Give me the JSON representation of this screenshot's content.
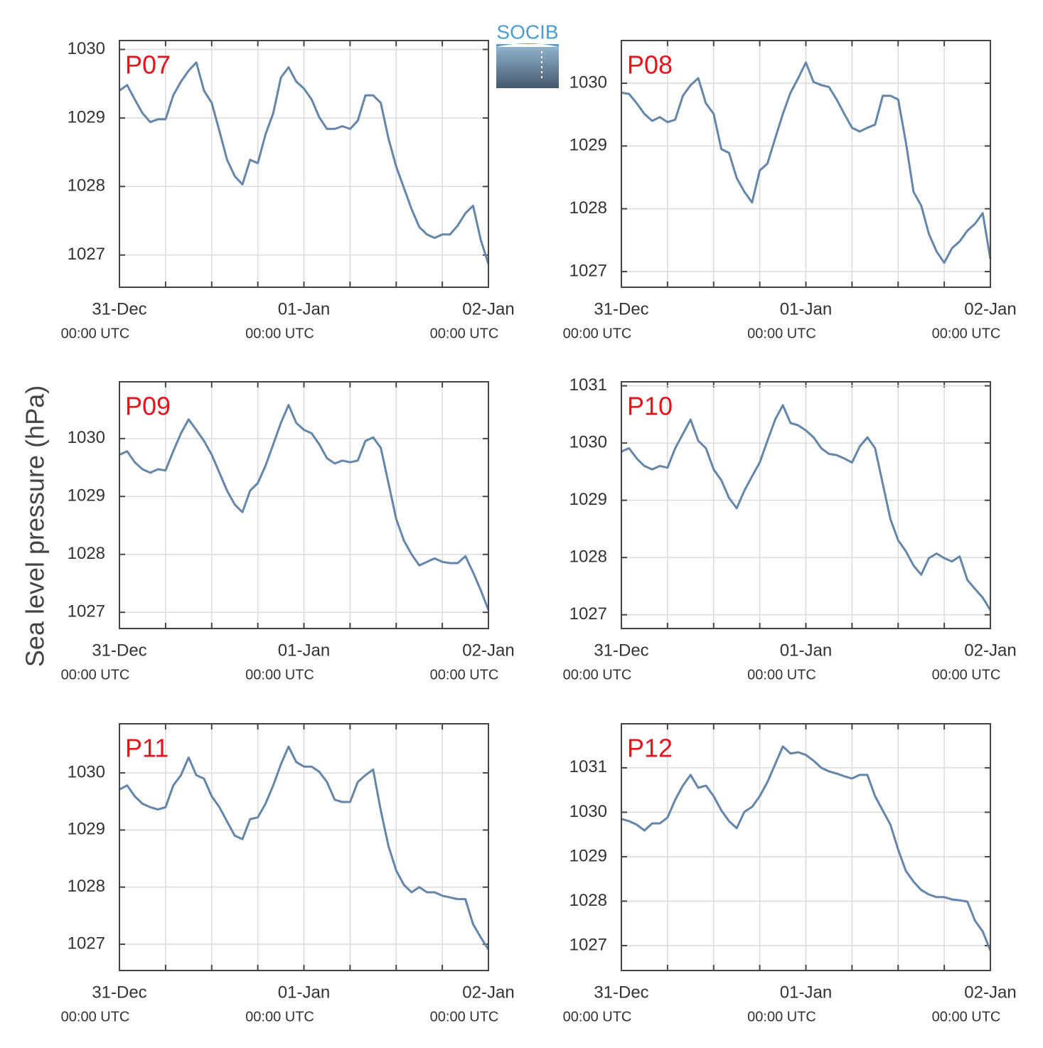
{
  "ylabel": "Sea level pressure (hPa)",
  "logo": "SOCIB",
  "chart_data": [
    {
      "type": "line",
      "title": "P07",
      "color": "#6486aa",
      "x": [
        0,
        1,
        2,
        3,
        4,
        5,
        6,
        7,
        8,
        9,
        10,
        11,
        12,
        13,
        14,
        15,
        16,
        17,
        18,
        19,
        20,
        21,
        22,
        23,
        24,
        25,
        26,
        27,
        28,
        29,
        30,
        31,
        32,
        33,
        34,
        35,
        36,
        37,
        38,
        39,
        40,
        41,
        42,
        43,
        44,
        45,
        46,
        47,
        48
      ],
      "values": [
        1029.4,
        1029.48,
        1029.27,
        1029.07,
        1028.94,
        1028.98,
        1028.98,
        1029.33,
        1029.53,
        1029.69,
        1029.81,
        1029.4,
        1029.22,
        1028.81,
        1028.39,
        1028.15,
        1028.03,
        1028.39,
        1028.34,
        1028.76,
        1029.07,
        1029.59,
        1029.74,
        1029.53,
        1029.43,
        1029.27,
        1029.01,
        1028.84,
        1028.84,
        1028.88,
        1028.84,
        1028.96,
        1029.33,
        1029.33,
        1029.22,
        1028.7,
        1028.29,
        1027.98,
        1027.67,
        1027.41,
        1027.3,
        1027.25,
        1027.3,
        1027.3,
        1027.43,
        1027.61,
        1027.72,
        1027.22,
        1026.87
      ],
      "xlim": [
        0,
        48
      ],
      "xticks": [
        {
          "value": 0,
          "label": "31-Dec"
        },
        {
          "value": 24,
          "label": "01-Jan"
        },
        {
          "value": 48,
          "label": "02-Jan"
        }
      ],
      "xtick_sublabels": [
        "00:00 UTC",
        "00:00 UTC",
        "00:00 UTC"
      ],
      "xminor_ticks": [
        6,
        12,
        18,
        30,
        36,
        42
      ],
      "ylim": [
        1026.53,
        1030.13
      ],
      "yticks": [
        1027,
        1028,
        1029,
        1030
      ],
      "grid": true
    },
    {
      "type": "line",
      "title": "P08",
      "color": "#6486aa",
      "x": [
        0,
        1,
        2,
        3,
        4,
        5,
        6,
        7,
        8,
        9,
        10,
        11,
        12,
        13,
        14,
        15,
        16,
        17,
        18,
        19,
        20,
        21,
        22,
        23,
        24,
        25,
        26,
        27,
        28,
        29,
        30,
        31,
        32,
        33,
        34,
        35,
        36,
        37,
        38,
        39,
        40,
        41,
        42,
        43,
        44,
        45,
        46,
        47,
        48
      ],
      "values": [
        1029.85,
        1029.83,
        1029.68,
        1029.51,
        1029.4,
        1029.46,
        1029.38,
        1029.42,
        1029.8,
        1029.97,
        1030.08,
        1029.68,
        1029.51,
        1028.95,
        1028.89,
        1028.49,
        1028.27,
        1028.1,
        1028.61,
        1028.72,
        1029.12,
        1029.51,
        1029.85,
        1030.08,
        1030.33,
        1030.02,
        1029.97,
        1029.94,
        1029.74,
        1029.51,
        1029.29,
        1029.23,
        1029.29,
        1029.34,
        1029.8,
        1029.8,
        1029.74,
        1029.06,
        1028.27,
        1028.05,
        1027.6,
        1027.32,
        1027.14,
        1027.37,
        1027.48,
        1027.65,
        1027.76,
        1027.93,
        1027.2
      ],
      "xlim": [
        0,
        48
      ],
      "xticks": [
        {
          "value": 0,
          "label": "31-Dec"
        },
        {
          "value": 24,
          "label": "01-Jan"
        },
        {
          "value": 48,
          "label": "02-Jan"
        }
      ],
      "xtick_sublabels": [
        "00:00 UTC",
        "00:00 UTC",
        "00:00 UTC"
      ],
      "xminor_ticks": [
        6,
        12,
        18,
        30,
        36,
        42
      ],
      "ylim": [
        1026.75,
        1030.68
      ],
      "yticks": [
        1027,
        1028,
        1029,
        1030
      ],
      "grid": true
    },
    {
      "type": "line",
      "title": "P09",
      "color": "#6486aa",
      "x": [
        0,
        1,
        2,
        3,
        4,
        5,
        6,
        7,
        8,
        9,
        10,
        11,
        12,
        13,
        14,
        15,
        16,
        17,
        18,
        19,
        20,
        21,
        22,
        23,
        24,
        25,
        26,
        27,
        28,
        29,
        30,
        31,
        32,
        33,
        34,
        35,
        36,
        37,
        38,
        39,
        40,
        41,
        42,
        43,
        44,
        45,
        46,
        47,
        48
      ],
      "values": [
        1029.72,
        1029.78,
        1029.59,
        1029.47,
        1029.41,
        1029.47,
        1029.45,
        1029.78,
        1030.09,
        1030.33,
        1030.15,
        1029.96,
        1029.72,
        1029.41,
        1029.1,
        1028.86,
        1028.73,
        1029.1,
        1029.23,
        1029.53,
        1029.9,
        1030.27,
        1030.58,
        1030.27,
        1030.15,
        1030.09,
        1029.9,
        1029.66,
        1029.57,
        1029.62,
        1029.59,
        1029.62,
        1029.96,
        1030.02,
        1029.84,
        1029.23,
        1028.61,
        1028.24,
        1028.0,
        1027.81,
        1027.87,
        1027.93,
        1027.87,
        1027.85,
        1027.85,
        1027.97,
        1027.69,
        1027.38,
        1027.04
      ],
      "xlim": [
        0,
        48
      ],
      "xticks": [
        {
          "value": 0,
          "label": "31-Dec"
        },
        {
          "value": 24,
          "label": "01-Jan"
        },
        {
          "value": 48,
          "label": "02-Jan"
        }
      ],
      "xtick_sublabels": [
        "00:00 UTC",
        "00:00 UTC",
        "00:00 UTC"
      ],
      "xminor_ticks": [
        6,
        12,
        18,
        30,
        36,
        42
      ],
      "ylim": [
        1026.72,
        1030.98
      ],
      "yticks": [
        1027,
        1028,
        1029,
        1030
      ],
      "grid": true
    },
    {
      "type": "line",
      "title": "P10",
      "color": "#6486aa",
      "x": [
        0,
        1,
        2,
        3,
        4,
        5,
        6,
        7,
        8,
        9,
        10,
        11,
        12,
        13,
        14,
        15,
        16,
        17,
        18,
        19,
        20,
        21,
        22,
        23,
        24,
        25,
        26,
        27,
        28,
        29,
        30,
        31,
        32,
        33,
        34,
        35,
        36,
        37,
        38,
        39,
        40,
        41,
        42,
        43,
        44,
        45,
        46,
        47,
        48
      ],
      "values": [
        1029.85,
        1029.91,
        1029.73,
        1029.6,
        1029.54,
        1029.6,
        1029.57,
        1029.91,
        1030.16,
        1030.41,
        1030.04,
        1029.91,
        1029.54,
        1029.35,
        1029.04,
        1028.86,
        1029.17,
        1029.42,
        1029.66,
        1030.04,
        1030.41,
        1030.66,
        1030.35,
        1030.31,
        1030.22,
        1030.1,
        1029.91,
        1029.81,
        1029.79,
        1029.73,
        1029.66,
        1029.94,
        1030.1,
        1029.91,
        1029.29,
        1028.67,
        1028.3,
        1028.11,
        1027.86,
        1027.7,
        1027.99,
        1028.07,
        1027.99,
        1027.93,
        1028.02,
        1027.61,
        1027.45,
        1027.3,
        1027.08
      ],
      "xlim": [
        0,
        48
      ],
      "xticks": [
        {
          "value": 0,
          "label": "31-Dec"
        },
        {
          "value": 24,
          "label": "01-Jan"
        },
        {
          "value": 48,
          "label": "02-Jan"
        }
      ],
      "xtick_sublabels": [
        "00:00 UTC",
        "00:00 UTC",
        "00:00 UTC"
      ],
      "xminor_ticks": [
        6,
        12,
        18,
        30,
        36,
        42
      ],
      "ylim": [
        1026.76,
        1031.07
      ],
      "yticks": [
        1027,
        1028,
        1029,
        1030,
        1031
      ],
      "grid": true
    },
    {
      "type": "line",
      "title": "P11",
      "color": "#6486aa",
      "x": [
        0,
        1,
        2,
        3,
        4,
        5,
        6,
        7,
        8,
        9,
        10,
        11,
        12,
        13,
        14,
        15,
        16,
        17,
        18,
        19,
        20,
        21,
        22,
        23,
        24,
        25,
        26,
        27,
        28,
        29,
        30,
        31,
        32,
        33,
        34,
        35,
        36,
        37,
        38,
        39,
        40,
        41,
        42,
        43,
        44,
        45,
        46,
        47,
        48
      ],
      "values": [
        1029.71,
        1029.78,
        1029.59,
        1029.46,
        1029.4,
        1029.36,
        1029.4,
        1029.78,
        1029.96,
        1030.27,
        1029.96,
        1029.9,
        1029.59,
        1029.4,
        1029.15,
        1028.9,
        1028.84,
        1029.19,
        1029.22,
        1029.46,
        1029.78,
        1030.15,
        1030.46,
        1030.19,
        1030.11,
        1030.11,
        1030.02,
        1029.84,
        1029.53,
        1029.49,
        1029.49,
        1029.84,
        1029.96,
        1030.06,
        1029.34,
        1028.72,
        1028.29,
        1028.04,
        1027.91,
        1028.0,
        1027.91,
        1027.91,
        1027.85,
        1027.82,
        1027.79,
        1027.79,
        1027.35,
        1027.12,
        1026.91
      ],
      "xlim": [
        0,
        48
      ],
      "xticks": [
        {
          "value": 0,
          "label": "31-Dec"
        },
        {
          "value": 24,
          "label": "01-Jan"
        },
        {
          "value": 48,
          "label": "02-Jan"
        }
      ],
      "xtick_sublabels": [
        "00:00 UTC",
        "00:00 UTC",
        "00:00 UTC"
      ],
      "xminor_ticks": [
        6,
        12,
        18,
        30,
        36,
        42
      ],
      "ylim": [
        1026.54,
        1030.86
      ],
      "yticks": [
        1027,
        1028,
        1029,
        1030
      ],
      "grid": true
    },
    {
      "type": "line",
      "title": "P12",
      "color": "#6486aa",
      "x": [
        0,
        1,
        2,
        3,
        4,
        5,
        6,
        7,
        8,
        9,
        10,
        11,
        12,
        13,
        14,
        15,
        16,
        17,
        18,
        19,
        20,
        21,
        22,
        23,
        24,
        25,
        26,
        27,
        28,
        29,
        30,
        31,
        32,
        33,
        34,
        35,
        36,
        37,
        38,
        39,
        40,
        41,
        42,
        43,
        44,
        45,
        46,
        47,
        48
      ],
      "values": [
        1029.85,
        1029.8,
        1029.72,
        1029.59,
        1029.75,
        1029.75,
        1029.88,
        1030.28,
        1030.6,
        1030.84,
        1030.55,
        1030.6,
        1030.36,
        1030.04,
        1029.8,
        1029.64,
        1030.01,
        1030.12,
        1030.36,
        1030.68,
        1031.08,
        1031.48,
        1031.32,
        1031.35,
        1031.29,
        1031.16,
        1031.0,
        1030.92,
        1030.87,
        1030.81,
        1030.76,
        1030.84,
        1030.84,
        1030.36,
        1030.04,
        1029.72,
        1029.16,
        1028.68,
        1028.44,
        1028.25,
        1028.15,
        1028.09,
        1028.09,
        1028.04,
        1028.02,
        1027.99,
        1027.56,
        1027.32,
        1026.89
      ],
      "xlim": [
        0,
        48
      ],
      "xticks": [
        {
          "value": 0,
          "label": "31-Dec"
        },
        {
          "value": 24,
          "label": "01-Jan"
        },
        {
          "value": 48,
          "label": "02-Jan"
        }
      ],
      "xtick_sublabels": [
        "00:00 UTC",
        "00:00 UTC",
        "00:00 UTC"
      ],
      "xminor_ticks": [
        6,
        12,
        18,
        30,
        36,
        42
      ],
      "ylim": [
        1026.44,
        1031.99
      ],
      "yticks": [
        1027,
        1028,
        1029,
        1030,
        1031
      ],
      "grid": true
    }
  ]
}
